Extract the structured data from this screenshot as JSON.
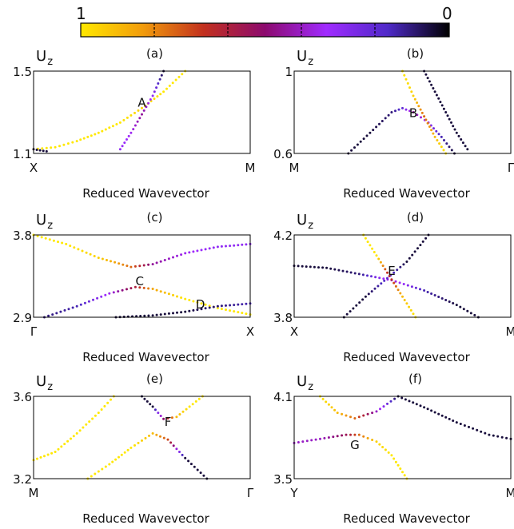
{
  "colorbar": {
    "left_label": "1",
    "right_label": "0",
    "stops": [
      "#ffe800",
      "#f29d0c",
      "#c2301e",
      "#8c0a6e",
      "#a02bff",
      "#4f2ac8",
      "#000000"
    ]
  },
  "chart_data": [
    {
      "type": "scatter",
      "panel": "(a)",
      "title": "(a)",
      "ylabel_main": "U",
      "ylabel_sub": "z",
      "xlabel": "Reduced Wavevector",
      "x_ticks": [
        "X",
        "M"
      ],
      "ylim": [
        1.1,
        1.5
      ],
      "y_ticks": [
        "1.1",
        "1.5"
      ],
      "grid": false,
      "annotations": [
        {
          "text": "A",
          "x": 0.5,
          "y": 1.35
        }
      ],
      "series": [
        {
          "values": [
            [
              0.0,
              1.12
            ],
            [
              0.1,
              1.13
            ],
            [
              0.2,
              1.16
            ],
            [
              0.3,
              1.2
            ],
            [
              0.4,
              1.25
            ],
            [
              0.5,
              1.32
            ],
            [
              0.6,
              1.4
            ],
            [
              0.7,
              1.5
            ]
          ],
          "color_values": [
            1,
            1,
            1,
            1,
            1,
            0.95,
            1,
            1
          ]
        },
        {
          "values": [
            [
              0.4,
              1.12
            ],
            [
              0.45,
              1.2
            ],
            [
              0.5,
              1.29
            ],
            [
              0.55,
              1.38
            ],
            [
              0.6,
              1.5
            ]
          ],
          "color_values": [
            0.3,
            0.35,
            0.45,
            0.3,
            0.05
          ]
        },
        {
          "values": [
            [
              0.0,
              1.12
            ],
            [
              0.03,
              1.115
            ],
            [
              0.06,
              1.11
            ]
          ],
          "color_values": [
            0.05,
            0.05,
            0.05
          ]
        }
      ]
    },
    {
      "type": "scatter",
      "panel": "(b)",
      "title": "(b)",
      "ylabel_main": "U",
      "ylabel_sub": "z",
      "xlabel": "Reduced Wavevector",
      "x_ticks": [
        "M",
        "Γ"
      ],
      "ylim": [
        0.6,
        1.0
      ],
      "y_ticks": [
        "0.6",
        "1"
      ],
      "grid": false,
      "annotations": [
        {
          "text": "B",
          "x": 0.55,
          "y": 0.8
        }
      ],
      "series": [
        {
          "values": [
            [
              0.25,
              0.6
            ],
            [
              0.35,
              0.7
            ],
            [
              0.45,
              0.8
            ],
            [
              0.5,
              0.82
            ],
            [
              0.55,
              0.8
            ],
            [
              0.62,
              0.75
            ],
            [
              0.68,
              0.68
            ],
            [
              0.74,
              0.6
            ]
          ],
          "color_values": [
            0.05,
            0.05,
            0.1,
            0.2,
            0.45,
            0.3,
            0.15,
            0.05
          ]
        },
        {
          "values": [
            [
              0.5,
              1.0
            ],
            [
              0.55,
              0.88
            ],
            [
              0.6,
              0.78
            ],
            [
              0.65,
              0.68
            ],
            [
              0.7,
              0.6
            ]
          ],
          "color_values": [
            1,
            0.95,
            0.75,
            0.9,
            1
          ]
        },
        {
          "values": [
            [
              0.6,
              1.0
            ],
            [
              0.65,
              0.9
            ],
            [
              0.7,
              0.8
            ],
            [
              0.75,
              0.7
            ],
            [
              0.8,
              0.62
            ]
          ],
          "color_values": [
            0.05,
            0.05,
            0.05,
            0.05,
            0.05
          ]
        }
      ]
    },
    {
      "type": "scatter",
      "panel": "(c)",
      "title": "(c)",
      "ylabel_main": "U",
      "ylabel_sub": "z",
      "xlabel": "Reduced Wavevector",
      "x_ticks": [
        "Γ",
        "X"
      ],
      "ylim": [
        2.9,
        3.8
      ],
      "y_ticks": [
        "2.9",
        "3.8"
      ],
      "grid": false,
      "annotations": [
        {
          "text": "C",
          "x": 0.49,
          "y": 3.3
        },
        {
          "text": "D",
          "x": 0.77,
          "y": 3.05
        }
      ],
      "series": [
        {
          "values": [
            [
              0.0,
              3.8
            ],
            [
              0.15,
              3.7
            ],
            [
              0.3,
              3.55
            ],
            [
              0.45,
              3.45
            ],
            [
              0.55,
              3.48
            ],
            [
              0.7,
              3.6
            ],
            [
              0.85,
              3.67
            ],
            [
              1.0,
              3.7
            ]
          ],
          "color_values": [
            1,
            1,
            0.95,
            0.75,
            0.45,
            0.35,
            0.3,
            0.3
          ]
        },
        {
          "values": [
            [
              0.05,
              2.9
            ],
            [
              0.2,
              3.02
            ],
            [
              0.35,
              3.16
            ],
            [
              0.47,
              3.23
            ],
            [
              0.55,
              3.21
            ],
            [
              0.7,
              3.1
            ],
            [
              0.85,
              3.0
            ],
            [
              1.0,
              2.93
            ]
          ],
          "color_values": [
            0.1,
            0.15,
            0.35,
            0.6,
            0.85,
            1,
            1,
            1
          ]
        },
        {
          "values": [
            [
              0.38,
              2.9
            ],
            [
              0.55,
              2.92
            ],
            [
              0.7,
              2.96
            ],
            [
              0.85,
              3.02
            ],
            [
              1.0,
              3.05
            ]
          ],
          "color_values": [
            0.05,
            0.05,
            0.05,
            0.1,
            0.15
          ]
        }
      ]
    },
    {
      "type": "scatter",
      "panel": "(d)",
      "title": "(d)",
      "ylabel_main": "U",
      "ylabel_sub": "z",
      "xlabel": "Reduced Wavevector",
      "x_ticks": [
        "X",
        "M"
      ],
      "ylim": [
        3.8,
        4.2
      ],
      "y_ticks": [
        "3.8",
        "4.2"
      ],
      "grid": false,
      "annotations": [
        {
          "text": "E",
          "x": 0.45,
          "y": 4.03
        }
      ],
      "series": [
        {
          "values": [
            [
              0.0,
              4.05
            ],
            [
              0.15,
              4.04
            ],
            [
              0.3,
              4.01
            ],
            [
              0.45,
              3.98
            ],
            [
              0.6,
              3.93
            ],
            [
              0.75,
              3.86
            ],
            [
              0.85,
              3.8
            ]
          ],
          "color_values": [
            0.05,
            0.05,
            0.1,
            0.4,
            0.15,
            0.05,
            0.05
          ]
        },
        {
          "values": [
            [
              0.23,
              3.8
            ],
            [
              0.33,
              3.9
            ],
            [
              0.43,
              3.99
            ],
            [
              0.52,
              4.07
            ],
            [
              0.62,
              4.2
            ]
          ],
          "color_values": [
            0.05,
            0.05,
            0.2,
            0.05,
            0.05
          ]
        },
        {
          "values": [
            [
              0.32,
              4.2
            ],
            [
              0.38,
              4.1
            ],
            [
              0.44,
              4.0
            ],
            [
              0.5,
              3.9
            ],
            [
              0.56,
              3.8
            ]
          ],
          "color_values": [
            1,
            1,
            0.6,
            0.9,
            1
          ]
        }
      ]
    },
    {
      "type": "scatter",
      "panel": "(e)",
      "title": "(e)",
      "ylabel_main": "U",
      "ylabel_sub": "z",
      "xlabel": "Reduced Wavevector",
      "x_ticks": [
        "M",
        "Γ"
      ],
      "ylim": [
        3.2,
        3.6
      ],
      "y_ticks": [
        "3.2",
        "3.6"
      ],
      "grid": false,
      "annotations": [
        {
          "text": "F",
          "x": 0.62,
          "y": 3.48
        }
      ],
      "series": [
        {
          "values": [
            [
              0.0,
              3.29
            ],
            [
              0.1,
              3.33
            ],
            [
              0.2,
              3.42
            ],
            [
              0.3,
              3.52
            ],
            [
              0.37,
              3.6
            ]
          ],
          "color_values": [
            1,
            1,
            1,
            1,
            1
          ]
        },
        {
          "values": [
            [
              0.25,
              3.2
            ],
            [
              0.35,
              3.27
            ],
            [
              0.45,
              3.35
            ],
            [
              0.55,
              3.42
            ],
            [
              0.62,
              3.39
            ],
            [
              0.7,
              3.3
            ],
            [
              0.8,
              3.2
            ]
          ],
          "color_values": [
            1,
            1,
            1,
            0.9,
            0.7,
            0.05,
            0.05
          ]
        },
        {
          "values": [
            [
              0.5,
              3.6
            ],
            [
              0.55,
              3.55
            ],
            [
              0.6,
              3.49
            ],
            [
              0.66,
              3.5
            ],
            [
              0.72,
              3.55
            ],
            [
              0.78,
              3.6
            ]
          ],
          "color_values": [
            0.05,
            0.05,
            0.5,
            0.9,
            1,
            1
          ]
        }
      ]
    },
    {
      "type": "scatter",
      "panel": "(f)",
      "title": "(f)",
      "ylabel_main": "U",
      "ylabel_sub": "z",
      "xlabel": "Reduced Wavevector",
      "x_ticks": [
        "Y",
        "M"
      ],
      "ylim": [
        3.5,
        4.1
      ],
      "y_ticks": [
        "3.5",
        "4.1"
      ],
      "grid": false,
      "annotations": [
        {
          "text": "G",
          "x": 0.28,
          "y": 3.75
        }
      ],
      "series": [
        {
          "values": [
            [
              0.0,
              3.76
            ],
            [
              0.12,
              3.79
            ],
            [
              0.24,
              3.82
            ],
            [
              0.3,
              3.82
            ],
            [
              0.38,
              3.77
            ],
            [
              0.45,
              3.67
            ],
            [
              0.52,
              3.5
            ]
          ],
          "color_values": [
            0.4,
            0.4,
            0.55,
            0.75,
            0.95,
            1,
            1
          ]
        },
        {
          "values": [
            [
              0.12,
              4.1
            ],
            [
              0.2,
              3.98
            ],
            [
              0.28,
              3.94
            ],
            [
              0.38,
              3.99
            ],
            [
              0.48,
              4.1
            ],
            [
              0.6,
              4.02
            ],
            [
              0.75,
              3.91
            ],
            [
              0.9,
              3.82
            ],
            [
              1.0,
              3.79
            ]
          ],
          "color_values": [
            1,
            0.9,
            0.75,
            0.4,
            0.05,
            0.05,
            0.05,
            0.05,
            0.05
          ]
        }
      ]
    }
  ]
}
